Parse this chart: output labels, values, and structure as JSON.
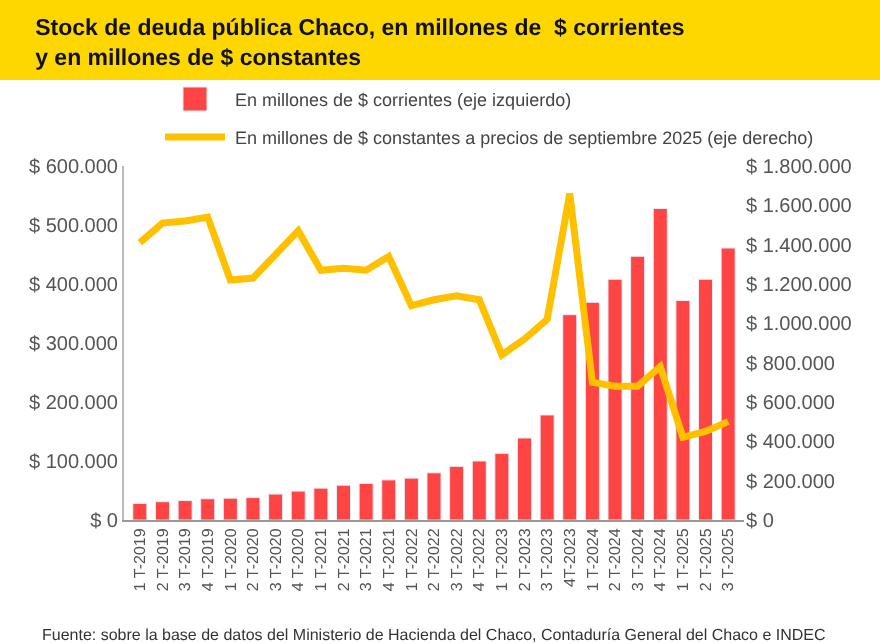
{
  "chart_data": {
    "type": "bar",
    "title": "Stock de deuda pública Chaco, en millones de  $ corrientes\ny en millones de $ constantes",
    "categories": [
      "1 T-2019",
      "2 T-2019",
      "3 T-2019",
      "4 T-2019",
      "1 T-2020",
      "2 T-2020",
      "3 T-2020",
      "4 T-2020",
      "1 T-2021",
      "2 T-2021",
      "3 T-2021",
      "4 T-2021",
      "1 T-2022",
      "2 T-2022",
      "3 T-2022",
      "4 T-2022",
      "1 T-2023",
      "2 T-2023",
      "3 T-2023",
      "4T-2023",
      "1 T-2024",
      "2 T-2024",
      "3 T-2024",
      "4 T-2024",
      "1 T-2025",
      "2 T-2025",
      "3 T-2025"
    ],
    "series": [
      {
        "name": "En millones de $ corrientes (eje izquierdo)",
        "color": "#ff4444",
        "values": [
          28000,
          31000,
          33000,
          36000,
          37000,
          38000,
          44000,
          49000,
          54000,
          59000,
          62000,
          68000,
          71000,
          80000,
          91000,
          100000,
          113000,
          139000,
          178000,
          348000,
          369000,
          408000,
          447000,
          528000,
          372000,
          408000,
          461000
        ]
      },
      {
        "name": "En millones de $ constantes a precios de septiembre 2025 (eje derecho)",
        "type": "line",
        "axis": "y2",
        "color": "#ffc000",
        "values": [
          1410000,
          1510000,
          1520000,
          1540000,
          1220000,
          1230000,
          1350000,
          1470000,
          1270000,
          1280000,
          1270000,
          1340000,
          1090000,
          1120000,
          1140000,
          1120000,
          840000,
          920000,
          1020000,
          1660000,
          700000,
          680000,
          680000,
          780000,
          420000,
          450000,
          500000
        ]
      }
    ],
    "ylim": [
      0,
      600000
    ],
    "yticks": [
      {
        "value": 0,
        "label": "$ 0"
      },
      {
        "value": 100000,
        "label": "$ 100.000"
      },
      {
        "value": 200000,
        "label": "$ 200.000"
      },
      {
        "value": 300000,
        "label": "$ 300.000"
      },
      {
        "value": 400000,
        "label": "$ 400.000"
      },
      {
        "value": 500000,
        "label": "$ 500.000"
      },
      {
        "value": 600000,
        "label": "$ 600.000"
      }
    ],
    "y2lim": [
      0,
      1800000
    ],
    "y2ticks": [
      {
        "value": 0,
        "label": "$ 0"
      },
      {
        "value": 200000,
        "label": "$ 200.000"
      },
      {
        "value": 400000,
        "label": "$ 400.000"
      },
      {
        "value": 600000,
        "label": "$ 600.000"
      },
      {
        "value": 800000,
        "label": "$ 800.000"
      },
      {
        "value": 1000000,
        "label": "$ 1.000.000"
      },
      {
        "value": 1200000,
        "label": "$ 1.200.000"
      },
      {
        "value": 1400000,
        "label": "$ 1.400.000"
      },
      {
        "value": 1600000,
        "label": "$ 1.600.000"
      },
      {
        "value": 1800000,
        "label": "$ 1.800.000"
      }
    ],
    "legend": "top",
    "marker": "none",
    "annotations": [
      "Fuente: sobre la base de datos del Ministerio de Hacienda del Chaco, Contaduría General del Chaco e INDEC"
    ]
  }
}
